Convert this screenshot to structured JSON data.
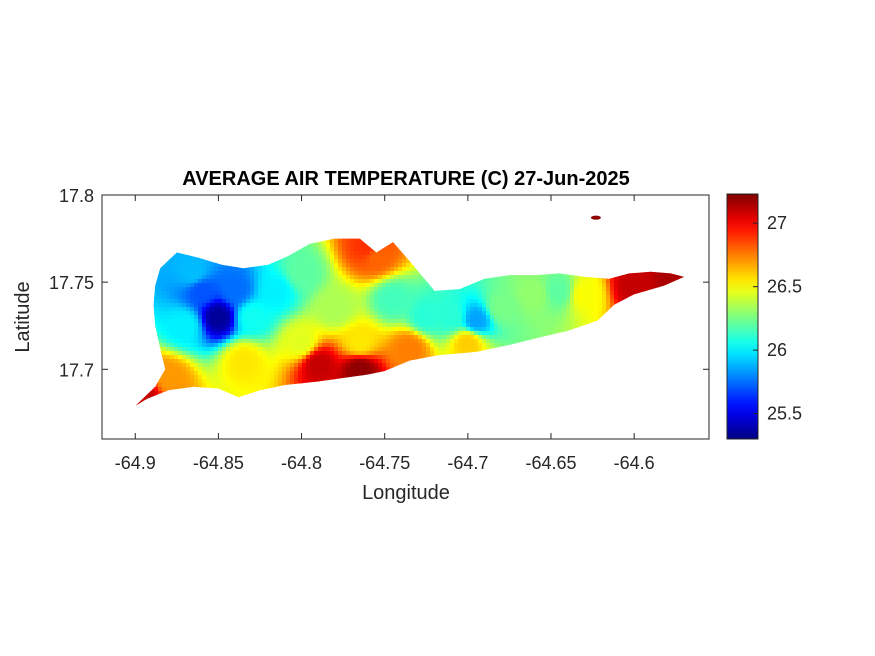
{
  "chart_data": {
    "type": "heatmap",
    "title": "AVERAGE AIR TEMPERATURE (C) 27-Jun-2025",
    "xlabel": "Longitude",
    "ylabel": "Latitude",
    "xlim": [
      -64.92,
      -64.555
    ],
    "ylim": [
      17.66,
      17.8
    ],
    "x_ticks": [
      -64.9,
      -64.85,
      -64.8,
      -64.75,
      -64.7,
      -64.65,
      -64.6
    ],
    "x_tick_labels": [
      "-64.9",
      "-64.85",
      "-64.8",
      "-64.75",
      "-64.7",
      "-64.65",
      "-64.6"
    ],
    "y_ticks": [
      17.8,
      17.75,
      17.7
    ],
    "y_tick_labels": [
      "17.8",
      "17.75",
      "17.7"
    ],
    "colorbar": {
      "colormap": "jet",
      "clim": [
        25.3,
        27.23
      ],
      "ticks": [
        25.5,
        26,
        26.5,
        27
      ],
      "tick_labels": [
        "25.5",
        "26",
        "26.5",
        "27"
      ]
    },
    "grid": false,
    "legend": "none",
    "land_outline": [
      [
        -64.9,
        17.679
      ],
      [
        -64.888,
        17.69
      ],
      [
        -64.882,
        17.7
      ],
      [
        -64.885,
        17.712
      ],
      [
        -64.888,
        17.725
      ],
      [
        -64.889,
        17.737
      ],
      [
        -64.888,
        17.748
      ],
      [
        -64.885,
        17.758
      ],
      [
        -64.875,
        17.767
      ],
      [
        -64.862,
        17.764
      ],
      [
        -64.848,
        17.76
      ],
      [
        -64.835,
        17.758
      ],
      [
        -64.82,
        17.76
      ],
      [
        -64.808,
        17.765
      ],
      [
        -64.795,
        17.772
      ],
      [
        -64.78,
        17.775
      ],
      [
        -64.765,
        17.775
      ],
      [
        -64.755,
        17.767
      ],
      [
        -64.745,
        17.773
      ],
      [
        -64.735,
        17.762
      ],
      [
        -64.72,
        17.745
      ],
      [
        -64.705,
        17.746
      ],
      [
        -64.69,
        17.752
      ],
      [
        -64.675,
        17.754
      ],
      [
        -64.66,
        17.754
      ],
      [
        -64.645,
        17.755
      ],
      [
        -64.63,
        17.753
      ],
      [
        -64.615,
        17.752
      ],
      [
        -64.603,
        17.755
      ],
      [
        -64.59,
        17.756
      ],
      [
        -64.578,
        17.755
      ],
      [
        -64.57,
        17.753
      ],
      [
        -64.582,
        17.748
      ],
      [
        -64.6,
        17.743
      ],
      [
        -64.612,
        17.737
      ],
      [
        -64.622,
        17.728
      ],
      [
        -64.64,
        17.722
      ],
      [
        -64.658,
        17.718
      ],
      [
        -64.675,
        17.714
      ],
      [
        -64.695,
        17.71
      ],
      [
        -64.718,
        17.708
      ],
      [
        -64.735,
        17.705
      ],
      [
        -64.75,
        17.699
      ],
      [
        -64.76,
        17.697
      ],
      [
        -64.775,
        17.695
      ],
      [
        -64.79,
        17.693
      ],
      [
        -64.81,
        17.691
      ],
      [
        -64.825,
        17.688
      ],
      [
        -64.838,
        17.684
      ],
      [
        -64.85,
        17.689
      ],
      [
        -64.865,
        17.69
      ],
      [
        -64.88,
        17.688
      ],
      [
        -64.893,
        17.683
      ]
    ],
    "temperature_samples": [
      {
        "lon": -64.85,
        "lat": 17.73,
        "value": 25.35
      },
      {
        "lon": -64.86,
        "lat": 17.745,
        "value": 25.7
      },
      {
        "lon": -64.84,
        "lat": 17.745,
        "value": 25.75
      },
      {
        "lon": -64.865,
        "lat": 17.755,
        "value": 25.9
      },
      {
        "lon": -64.87,
        "lat": 17.725,
        "value": 26.0
      },
      {
        "lon": -64.83,
        "lat": 17.73,
        "value": 26.05
      },
      {
        "lon": -64.815,
        "lat": 17.745,
        "value": 26.0
      },
      {
        "lon": -64.8,
        "lat": 17.755,
        "value": 26.2
      },
      {
        "lon": -64.78,
        "lat": 17.735,
        "value": 26.35
      },
      {
        "lon": -64.8,
        "lat": 17.715,
        "value": 26.45
      },
      {
        "lon": -64.835,
        "lat": 17.705,
        "value": 26.55
      },
      {
        "lon": -64.765,
        "lat": 17.715,
        "value": 26.55
      },
      {
        "lon": -64.745,
        "lat": 17.74,
        "value": 26.15
      },
      {
        "lon": -64.725,
        "lat": 17.73,
        "value": 26.1
      },
      {
        "lon": -64.71,
        "lat": 17.73,
        "value": 26.1
      },
      {
        "lon": -64.695,
        "lat": 17.728,
        "value": 25.85
      },
      {
        "lon": -64.68,
        "lat": 17.735,
        "value": 26.25
      },
      {
        "lon": -64.66,
        "lat": 17.743,
        "value": 26.3
      },
      {
        "lon": -64.645,
        "lat": 17.745,
        "value": 26.2
      },
      {
        "lon": -64.63,
        "lat": 17.743,
        "value": 26.5
      },
      {
        "lon": -64.76,
        "lat": 17.77,
        "value": 26.9
      },
      {
        "lon": -64.895,
        "lat": 17.685,
        "value": 27.1
      },
      {
        "lon": -64.79,
        "lat": 17.703,
        "value": 27.1
      },
      {
        "lon": -64.765,
        "lat": 17.7,
        "value": 27.2
      },
      {
        "lon": -64.6,
        "lat": 17.748,
        "value": 27.1
      },
      {
        "lon": -64.575,
        "lat": 17.753,
        "value": 27.15
      },
      {
        "lon": -64.755,
        "lat": 17.765,
        "value": 26.8
      },
      {
        "lon": -64.88,
        "lat": 17.695,
        "value": 26.7
      },
      {
        "lon": -64.735,
        "lat": 17.712,
        "value": 26.75
      },
      {
        "lon": -64.7,
        "lat": 17.715,
        "value": 26.6
      }
    ],
    "extra_land": [
      {
        "lon": -64.623,
        "lat": 17.787,
        "value": 27.2
      }
    ]
  }
}
